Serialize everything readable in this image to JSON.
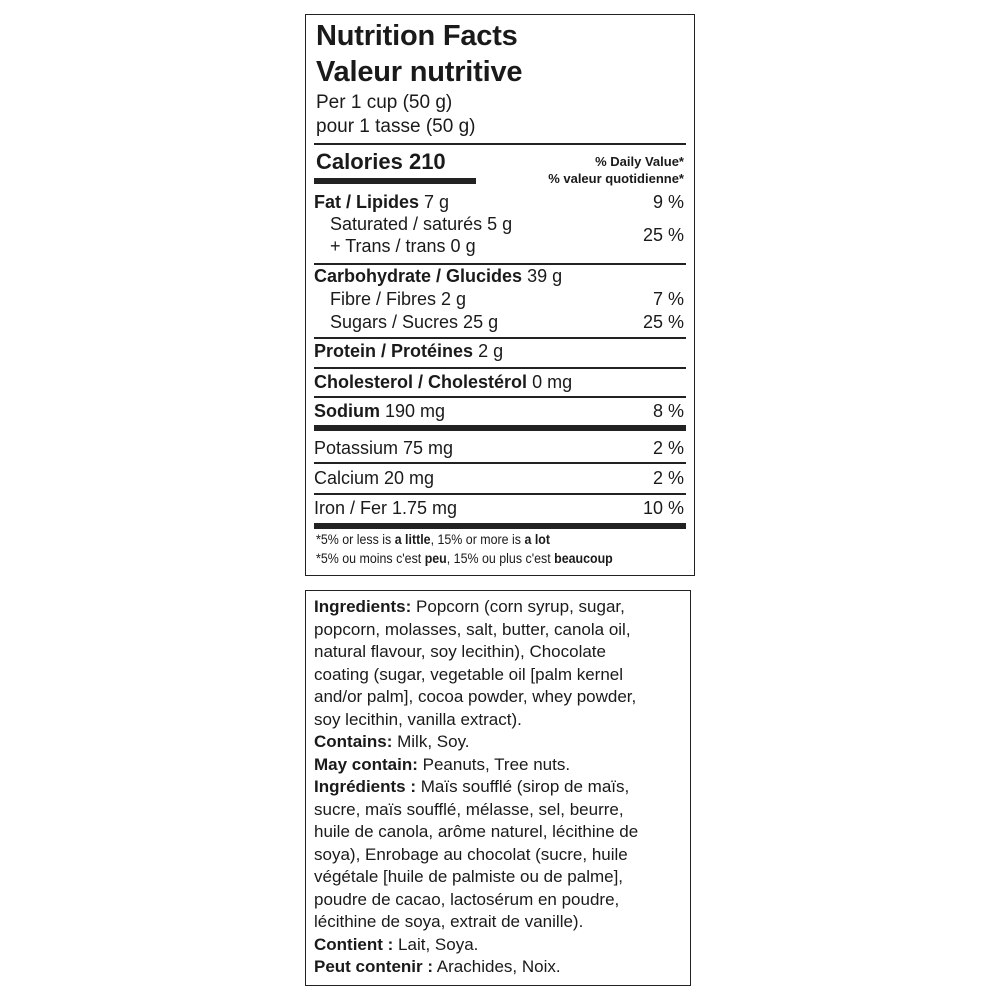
{
  "nutrition": {
    "title_en": "Nutrition Facts",
    "title_fr": "Valeur nutritive",
    "serving_en": "Per 1 cup (50 g)",
    "serving_fr": "pour 1 tasse (50 g)",
    "calories_label": "Calories",
    "calories_value": "210",
    "dv_header_en": "% Daily Value*",
    "dv_header_fr": "% valeur quotidienne*",
    "rows": [
      {
        "bold": "Fat / Lipides",
        "amount": "7 g",
        "dv": "9 %"
      },
      {
        "bold": "",
        "amount": "Saturated / saturés 5 g",
        "dv": ""
      },
      {
        "bold": "",
        "amount": "+ Trans / trans 0 g",
        "dv": "25 %"
      },
      {
        "bold": "Carbohydrate / Glucides",
        "amount": "39 g",
        "dv": ""
      },
      {
        "bold": "",
        "amount": "Fibre / Fibres 2 g",
        "dv": "7 %"
      },
      {
        "bold": "",
        "amount": "Sugars / Sucres 25 g",
        "dv": "25 %"
      },
      {
        "bold": "Protein / Protéines",
        "amount": "2 g",
        "dv": ""
      },
      {
        "bold": "Cholesterol / Cholestérol",
        "amount": "0 mg",
        "dv": ""
      },
      {
        "bold": "Sodium",
        "amount": "190 mg",
        "dv": "8 %"
      },
      {
        "bold": "",
        "amount": "Potassium 75 mg",
        "dv": "2 %"
      },
      {
        "bold": "",
        "amount": "Calcium 20 mg",
        "dv": "2 %"
      },
      {
        "bold": "",
        "amount": "Iron / Fer 1.75 mg",
        "dv": "10 %"
      }
    ],
    "footnote_en": {
      "a": "*5% or less is ",
      "b": "a little",
      "c": ", 15% or more is ",
      "d": "a lot"
    },
    "footnote_fr": {
      "a": "*5% ou moins c'est ",
      "b": "peu",
      "c": ", 15% ou plus c'est ",
      "d": "beaucoup"
    }
  },
  "ingredients": {
    "lines": [
      {
        "bold": "Ingredients:",
        "text": " Popcorn (corn syrup, sugar,"
      },
      {
        "bold": "",
        "text": "popcorn, molasses, salt, butter, canola oil,"
      },
      {
        "bold": "",
        "text": "natural flavour, soy lecithin), Chocolate"
      },
      {
        "bold": "",
        "text": "coating (sugar, vegetable oil [palm kernel"
      },
      {
        "bold": "",
        "text": "and/or palm], cocoa powder, whey powder,"
      },
      {
        "bold": "",
        "text": "soy lecithin, vanilla extract)."
      },
      {
        "bold": "Contains:",
        "text": " Milk, Soy."
      },
      {
        "bold": "May contain:",
        "text": " Peanuts, Tree nuts."
      },
      {
        "bold": "Ingrédients :",
        "text": " Maïs soufflé (sirop de maïs,"
      },
      {
        "bold": "",
        "text": "sucre, maïs soufflé, mélasse, sel, beurre,"
      },
      {
        "bold": "",
        "text": "huile de canola, arôme naturel, lécithine de"
      },
      {
        "bold": "",
        "text": "soya), Enrobage au chocolat (sucre, huile"
      },
      {
        "bold": "",
        "text": "végétale [huile de palmiste ou de palme],"
      },
      {
        "bold": "",
        "text": "poudre de cacao, lactosérum en poudre,"
      },
      {
        "bold": "",
        "text": "lécithine de soya, extrait de vanille)."
      },
      {
        "bold": "Contient :",
        "text": " Lait, Soya."
      },
      {
        "bold": "Peut contenir :",
        "text": " Arachides, Noix."
      }
    ]
  }
}
